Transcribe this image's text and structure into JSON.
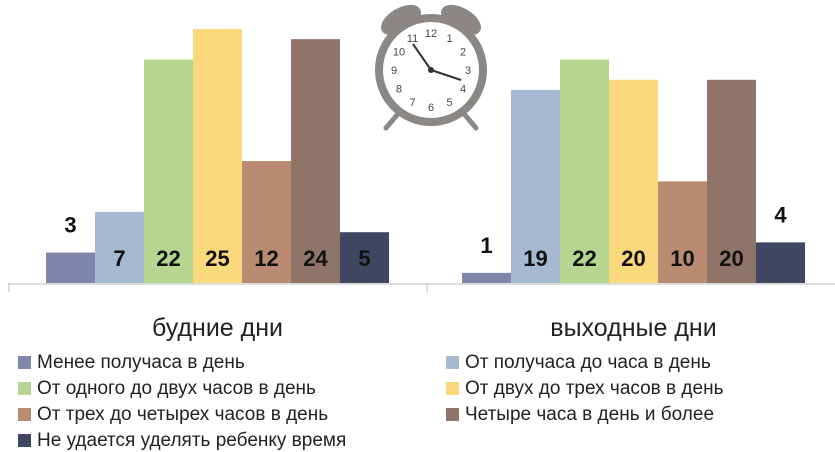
{
  "chart_data": {
    "type": "bar",
    "categories": [
      "будние дни",
      "выходные дни"
    ],
    "series": [
      {
        "name": "Менее получаса в день",
        "color": "#7f86a9",
        "values": [
          3,
          1
        ]
      },
      {
        "name": "От получаса до часа в день",
        "color": "#a5b9d1",
        "values": [
          7,
          19
        ]
      },
      {
        "name": "От одного до двух часов в день",
        "color": "#b6d590",
        "values": [
          22,
          22
        ]
      },
      {
        "name": "От двух до трех часов в день",
        "color": "#fad87c",
        "values": [
          25,
          20
        ]
      },
      {
        "name": "От трех до четырех часов в день",
        "color": "#bb8a72",
        "values": [
          12,
          10
        ]
      },
      {
        "name": "Четыре часа в день и более",
        "color": "#8f7469",
        "values": [
          24,
          20
        ]
      },
      {
        "name": "Не удается уделять ребенку время",
        "color": "#3f4763",
        "values": [
          5,
          4
        ]
      }
    ],
    "ylim": [
      0,
      25
    ],
    "grid": false,
    "legend_position": "bottom",
    "decoration": "alarm-clock-icon"
  },
  "clock": {
    "numbers": [
      "12",
      "1",
      "2",
      "3",
      "4",
      "5",
      "6",
      "7",
      "8",
      "9",
      "10",
      "11"
    ]
  }
}
